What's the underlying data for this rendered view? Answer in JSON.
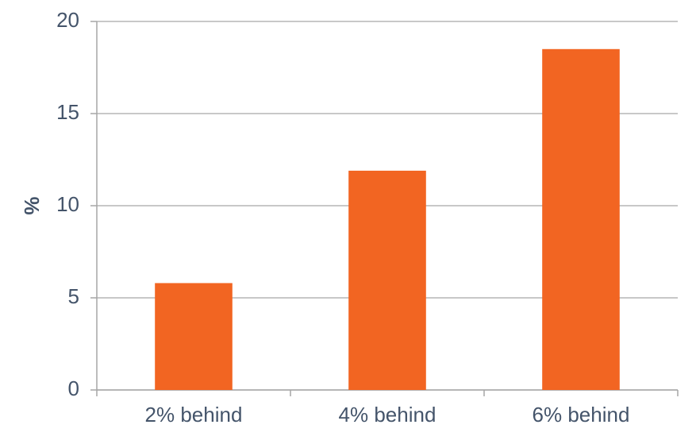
{
  "chart_data": {
    "type": "bar",
    "y_label": "%",
    "categories": [
      "2% behind",
      "4% behind",
      "6% behind"
    ],
    "values": [
      5.8,
      11.9,
      18.5
    ],
    "color": "#f26522",
    "ylim": [
      0,
      20
    ],
    "yticks": [
      0,
      5,
      10,
      15,
      20
    ],
    "grid": true
  }
}
